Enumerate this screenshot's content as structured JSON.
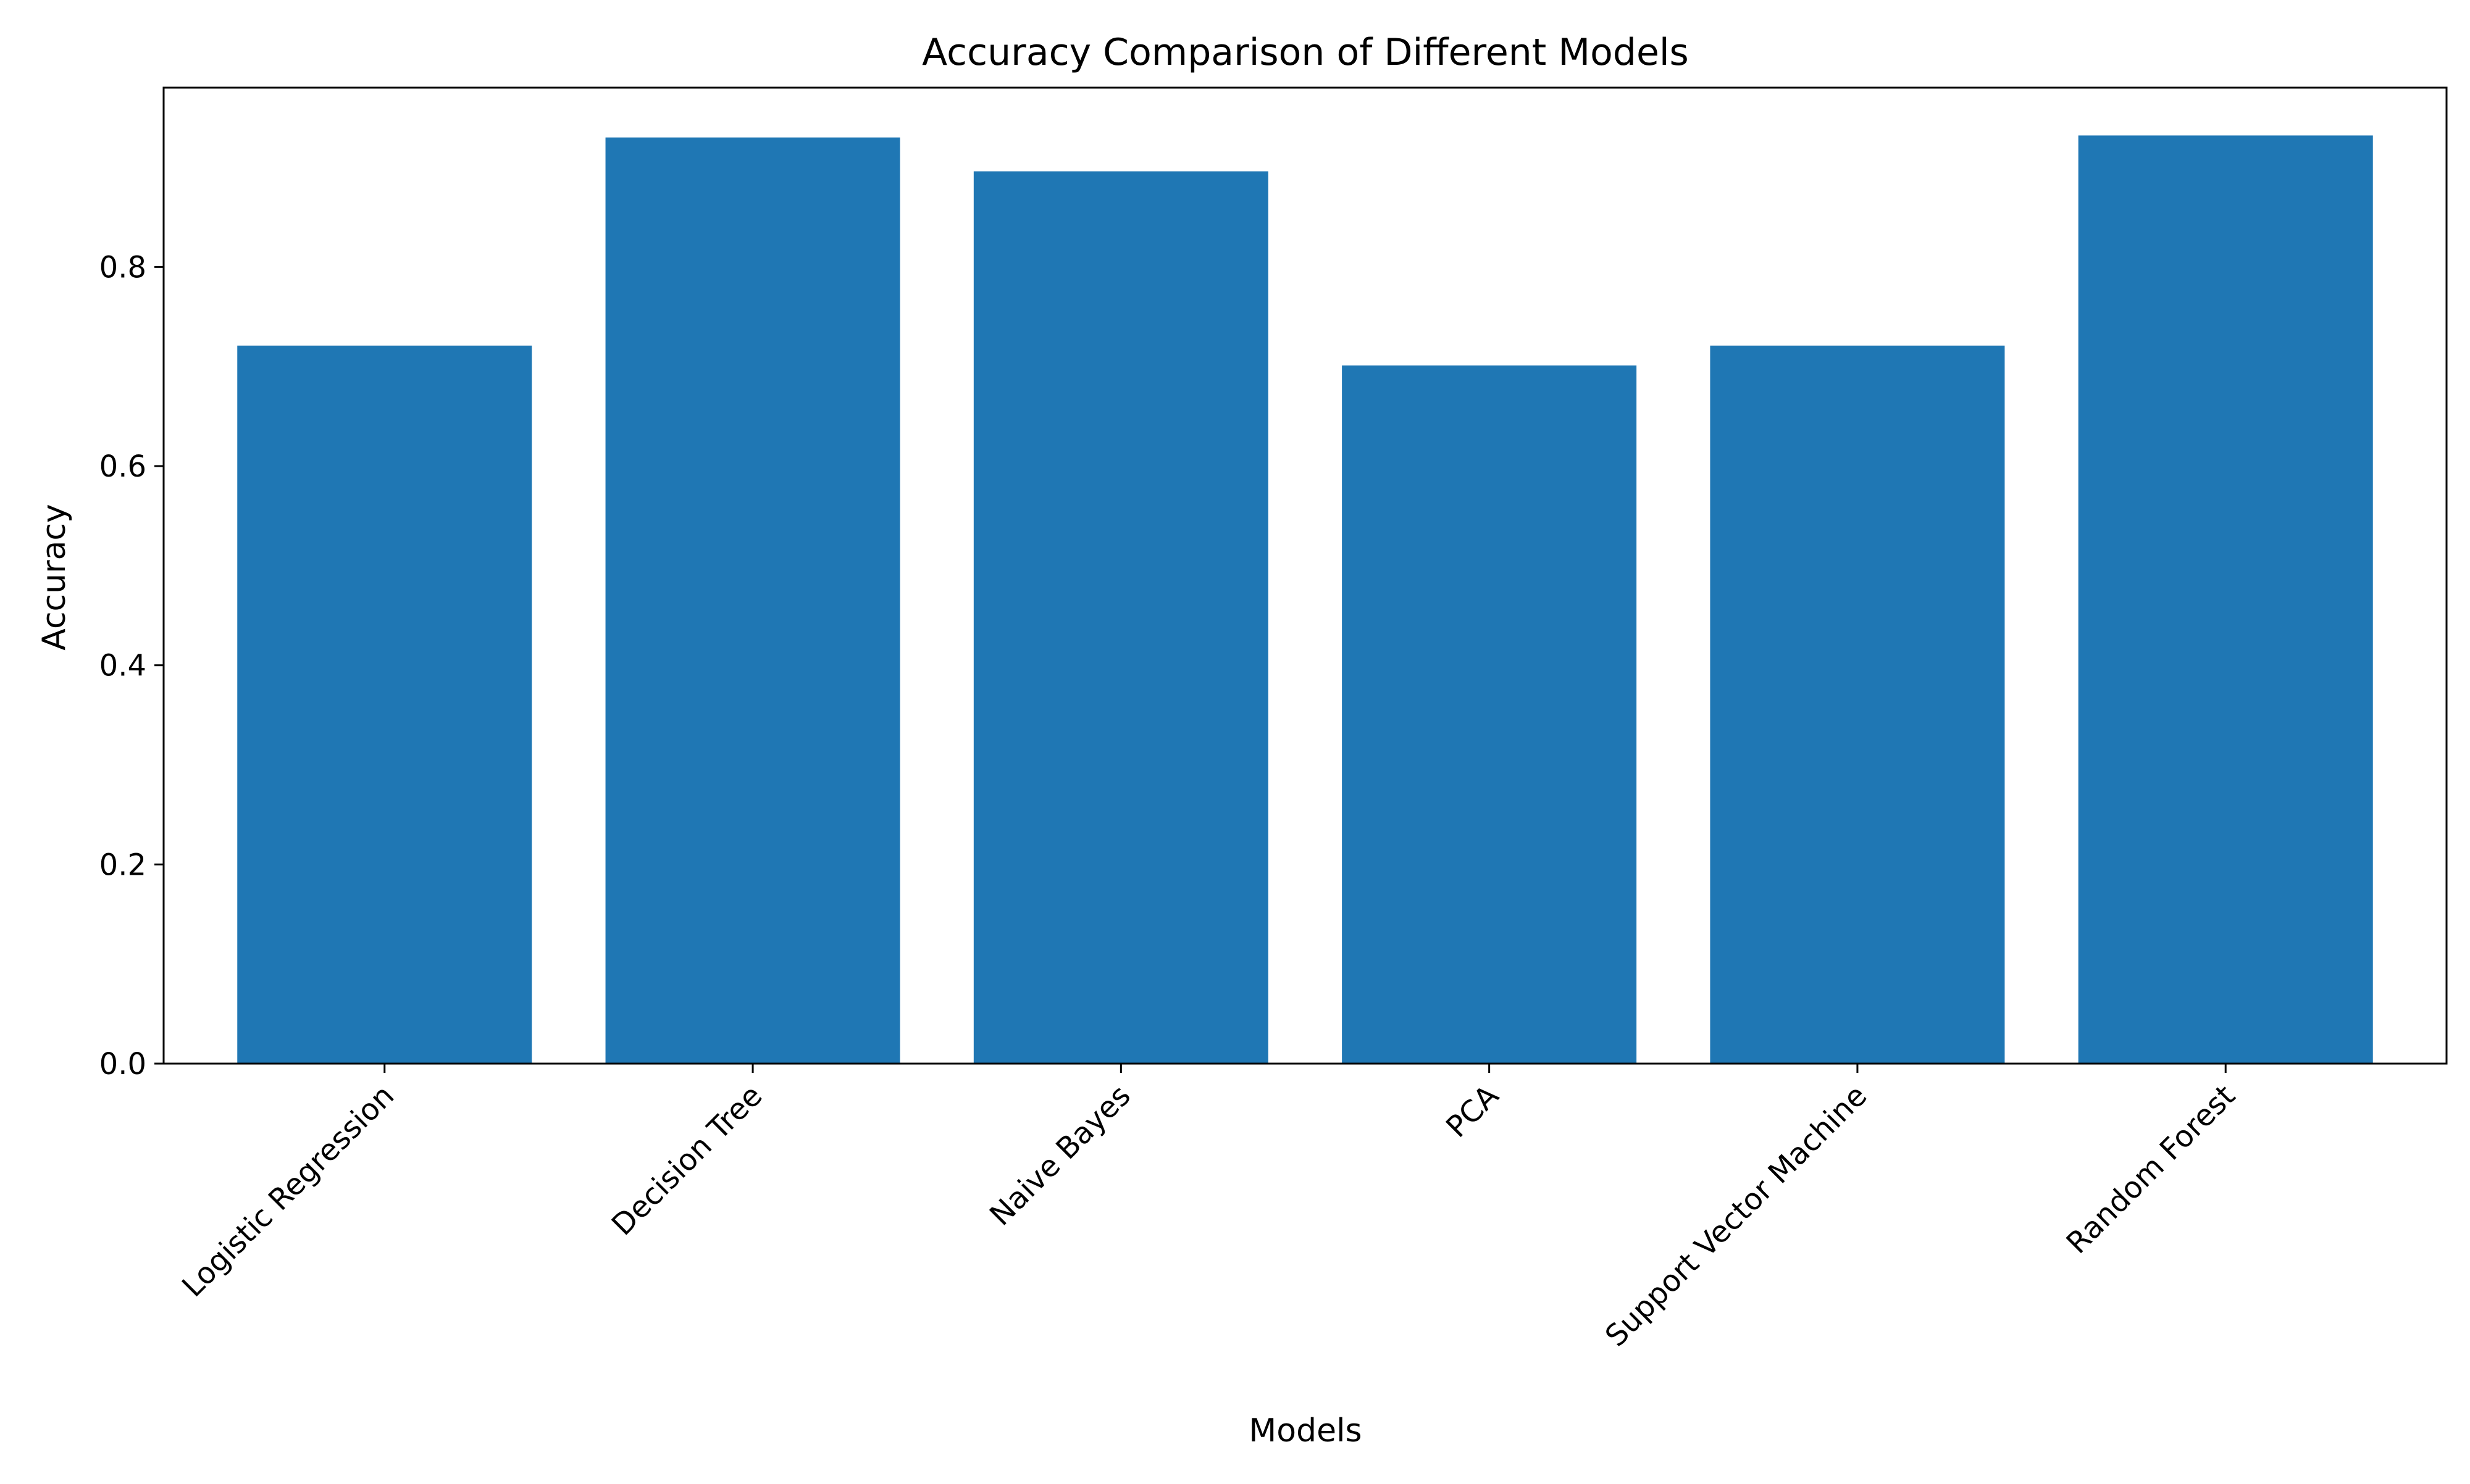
{
  "chart_data": {
    "type": "bar",
    "title": "Accuracy Comparison of Different Models",
    "xlabel": "Models",
    "ylabel": "Accuracy",
    "categories": [
      "Logistic Regression",
      "Decision Tree",
      "Naive Bayes",
      "PCA",
      "Support Vector Machine",
      "Random Forest"
    ],
    "values": [
      0.721,
      0.93,
      0.896,
      0.701,
      0.721,
      0.932
    ],
    "ylim": [
      0,
      0.98
    ],
    "yticks": [
      0.0,
      0.2,
      0.4,
      0.6,
      0.8
    ],
    "ytick_labels": [
      "0.0",
      "0.2",
      "0.4",
      "0.6",
      "0.8"
    ],
    "bar_color": "#1f77b4",
    "grid": false,
    "legend": "none"
  }
}
